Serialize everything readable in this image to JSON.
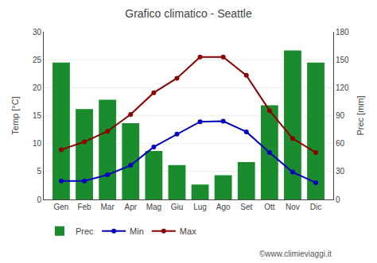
{
  "chart_data": {
    "type": "bar",
    "title": "Grafico climatico - Seattle",
    "categories": [
      "Gen",
      "Feb",
      "Mar",
      "Apr",
      "Mag",
      "Giu",
      "Lug",
      "Ago",
      "Set",
      "Ott",
      "Nov",
      "Dic"
    ],
    "series": [
      {
        "name": "Prec",
        "type": "bar",
        "axis": "y2",
        "color": "#1a8c2e",
        "values": [
          147,
          97,
          107,
          82,
          52,
          37,
          16,
          26,
          40,
          101,
          160,
          147
        ]
      },
      {
        "name": "Min",
        "type": "line",
        "color": "#0000bb",
        "marker": "circle",
        "values": [
          3.3,
          3.3,
          4.4,
          6.1,
          9.4,
          11.7,
          13.9,
          14.0,
          12.1,
          8.4,
          4.9,
          3.0
        ]
      },
      {
        "name": "Max",
        "type": "line",
        "color": "#8b0000",
        "marker": "circle",
        "values": [
          8.9,
          10.3,
          12.2,
          15.2,
          19.1,
          21.7,
          25.5,
          25.5,
          22.2,
          15.9,
          10.9,
          8.4
        ]
      }
    ],
    "ylabel": "Temp [°C]",
    "y2label": "Prec [mm]",
    "ylim": [
      0,
      30
    ],
    "yticks": [
      0,
      5,
      10,
      15,
      20,
      25,
      30
    ],
    "y2lim": [
      0,
      180
    ],
    "y2ticks": [
      0,
      30,
      60,
      90,
      120,
      150,
      180
    ],
    "grid": true,
    "legend": "bottom",
    "annotations": [
      "©www.climieviaggi.it"
    ]
  }
}
